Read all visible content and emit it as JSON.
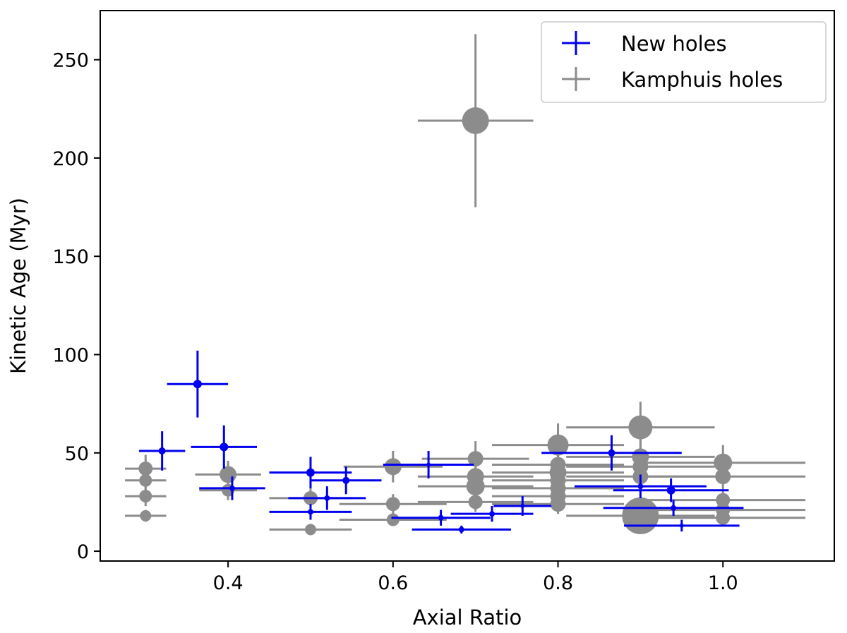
{
  "chart_data": {
    "type": "scatter",
    "title": "",
    "xlabel": "Axial Ratio",
    "ylabel": "Kinetic Age (Myr)",
    "xlim": [
      0.245,
      1.135
    ],
    "ylim": [
      -5,
      275
    ],
    "xticks": [
      0.4,
      0.6,
      0.8,
      1.0
    ],
    "xtick_labels": [
      "0.4",
      "0.6",
      "0.8",
      "1.0"
    ],
    "yticks": [
      0,
      50,
      100,
      150,
      200,
      250
    ],
    "ytick_labels": [
      "0",
      "50",
      "100",
      "150",
      "200",
      "250"
    ],
    "legend_position": "top-right",
    "series": [
      {
        "name": "New holes",
        "color": "#0000ee",
        "points": [
          {
            "x": 0.32,
            "y": 51,
            "xerr": 0.028,
            "yerr": 10,
            "size": 5
          },
          {
            "x": 0.363,
            "y": 85,
            "xerr": 0.037,
            "yerr": 17,
            "size": 6
          },
          {
            "x": 0.395,
            "y": 53,
            "xerr": 0.04,
            "yerr": 11,
            "size": 6
          },
          {
            "x": 0.405,
            "y": 32,
            "xerr": 0.04,
            "yerr": 6,
            "size": 4
          },
          {
            "x": 0.5,
            "y": 40,
            "xerr": 0.05,
            "yerr": 8,
            "size": 6
          },
          {
            "x": 0.5,
            "y": 20,
            "xerr": 0.05,
            "yerr": 4,
            "size": 4
          },
          {
            "x": 0.52,
            "y": 27,
            "xerr": 0.047,
            "yerr": 6,
            "size": 4
          },
          {
            "x": 0.543,
            "y": 36,
            "xerr": 0.043,
            "yerr": 7,
            "size": 5
          },
          {
            "x": 0.643,
            "y": 44,
            "xerr": 0.055,
            "yerr": 7,
            "size": 3
          },
          {
            "x": 0.658,
            "y": 17,
            "xerr": 0.06,
            "yerr": 4,
            "size": 4
          },
          {
            "x": 0.683,
            "y": 11,
            "xerr": 0.06,
            "yerr": 2,
            "size": 4
          },
          {
            "x": 0.72,
            "y": 19,
            "xerr": 0.05,
            "yerr": 4,
            "size": 4
          },
          {
            "x": 0.757,
            "y": 23,
            "xerr": 0.035,
            "yerr": 5,
            "size": 3
          },
          {
            "x": 0.865,
            "y": 50,
            "xerr": 0.085,
            "yerr": 9,
            "size": 5
          },
          {
            "x": 0.9,
            "y": 33,
            "xerr": 0.08,
            "yerr": 6,
            "size": 4
          },
          {
            "x": 0.937,
            "y": 31,
            "xerr": 0.07,
            "yerr": 6,
            "size": 6
          },
          {
            "x": 0.94,
            "y": 22,
            "xerr": 0.085,
            "yerr": 4,
            "size": 4
          },
          {
            "x": 0.95,
            "y": 13,
            "xerr": 0.07,
            "yerr": 3,
            "size": 3
          }
        ]
      },
      {
        "name": "Kamphuis holes",
        "color": "#8c8c8c",
        "points": [
          {
            "x": 0.3,
            "y": 42,
            "xerr": 0.025,
            "yerr": 7,
            "size": 10
          },
          {
            "x": 0.3,
            "y": 36,
            "xerr": 0.025,
            "yerr": 5,
            "size": 9
          },
          {
            "x": 0.3,
            "y": 28,
            "xerr": 0.025,
            "yerr": 5,
            "size": 9
          },
          {
            "x": 0.3,
            "y": 18,
            "xerr": 0.025,
            "yerr": 3,
            "size": 8
          },
          {
            "x": 0.4,
            "y": 39,
            "xerr": 0.04,
            "yerr": 7,
            "size": 12
          },
          {
            "x": 0.4,
            "y": 31,
            "xerr": 0.035,
            "yerr": 5,
            "size": 9
          },
          {
            "x": 0.5,
            "y": 27,
            "xerr": 0.05,
            "yerr": 5,
            "size": 10
          },
          {
            "x": 0.5,
            "y": 11,
            "xerr": 0.05,
            "yerr": 2,
            "size": 8
          },
          {
            "x": 0.6,
            "y": 43,
            "xerr": 0.06,
            "yerr": 8,
            "size": 12
          },
          {
            "x": 0.6,
            "y": 24,
            "xerr": 0.065,
            "yerr": 5,
            "size": 10
          },
          {
            "x": 0.6,
            "y": 16,
            "xerr": 0.065,
            "yerr": 3,
            "size": 9
          },
          {
            "x": 0.7,
            "y": 219,
            "xerr": 0.07,
            "yerr": 44,
            "size": 19
          },
          {
            "x": 0.7,
            "y": 47,
            "xerr": 0.065,
            "yerr": 9,
            "size": 11
          },
          {
            "x": 0.7,
            "y": 38,
            "xerr": 0.07,
            "yerr": 7,
            "size": 12
          },
          {
            "x": 0.7,
            "y": 33,
            "xerr": 0.07,
            "yerr": 6,
            "size": 13
          },
          {
            "x": 0.7,
            "y": 25,
            "xerr": 0.07,
            "yerr": 5,
            "size": 10
          },
          {
            "x": 0.8,
            "y": 54,
            "xerr": 0.08,
            "yerr": 11,
            "size": 15
          },
          {
            "x": 0.8,
            "y": 44,
            "xerr": 0.08,
            "yerr": 8,
            "size": 11
          },
          {
            "x": 0.8,
            "y": 40,
            "xerr": 0.08,
            "yerr": 7,
            "size": 12
          },
          {
            "x": 0.8,
            "y": 36,
            "xerr": 0.08,
            "yerr": 7,
            "size": 11
          },
          {
            "x": 0.8,
            "y": 32,
            "xerr": 0.08,
            "yerr": 6,
            "size": 11
          },
          {
            "x": 0.8,
            "y": 28,
            "xerr": 0.08,
            "yerr": 6,
            "size": 11
          },
          {
            "x": 0.8,
            "y": 24,
            "xerr": 0.08,
            "yerr": 5,
            "size": 11
          },
          {
            "x": 0.9,
            "y": 63,
            "xerr": 0.09,
            "yerr": 13,
            "size": 17
          },
          {
            "x": 0.9,
            "y": 48,
            "xerr": 0.09,
            "yerr": 9,
            "size": 12
          },
          {
            "x": 0.9,
            "y": 43,
            "xerr": 0.09,
            "yerr": 8,
            "size": 11
          },
          {
            "x": 0.9,
            "y": 38,
            "xerr": 0.09,
            "yerr": 7,
            "size": 11
          },
          {
            "x": 0.9,
            "y": 18,
            "xerr": 0.09,
            "yerr": 4,
            "size": 26
          },
          {
            "x": 1.0,
            "y": 45,
            "xerr": 0.1,
            "yerr": 9,
            "size": 13
          },
          {
            "x": 1.0,
            "y": 38,
            "xerr": 0.1,
            "yerr": 7,
            "size": 11
          },
          {
            "x": 1.0,
            "y": 26,
            "xerr": 0.1,
            "yerr": 5,
            "size": 10
          },
          {
            "x": 1.0,
            "y": 21,
            "xerr": 0.1,
            "yerr": 4,
            "size": 10
          },
          {
            "x": 1.0,
            "y": 17,
            "xerr": 0.1,
            "yerr": 3,
            "size": 10
          }
        ]
      }
    ]
  }
}
